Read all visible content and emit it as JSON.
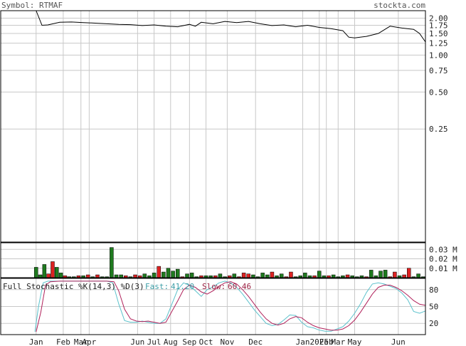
{
  "header": {
    "symbol_text": "Symbol: RTMAF",
    "site_text": "stockta.com"
  },
  "colors": {
    "grid": "#c8c8c8",
    "frame": "#000000",
    "price_line": "#000000",
    "volume_up": "#1f7a1f",
    "volume_down": "#dd2222",
    "fast_line": "#5cc2cc",
    "slow_line": "#b0205a",
    "fast_label": "#3f9fa8",
    "slow_label": "#9b2243"
  },
  "chart_data": [
    {
      "type": "line",
      "name": "price",
      "yscale": "log",
      "y_ticks": [
        "2.00",
        "1.75",
        "1.50",
        "1.25",
        "1.00",
        "0.75",
        "0.50",
        "0.25"
      ],
      "y_tick_values": [
        2.0,
        1.75,
        1.5,
        1.25,
        1.0,
        0.75,
        0.5,
        0.25
      ],
      "ylim": [
        0.03,
        2.3
      ],
      "x_range": [
        0,
        36
      ],
      "x_ticks": [
        "Jan",
        "Feb",
        "Mar",
        "Apr",
        "Jun",
        "Jul",
        "Aug",
        "Sep",
        "Oct",
        "Nov",
        "Dec",
        "Jan",
        "2025",
        "Feb",
        "Mar",
        "May",
        "Jun"
      ],
      "x_tick_positions": [
        3.0,
        5.3,
        6.8,
        7.5,
        11.6,
        13.0,
        14.4,
        16.0,
        17.4,
        19.2,
        21.6,
        25.6,
        27.0,
        27.6,
        28.6,
        30.0,
        33.7
      ],
      "x": [
        3.0,
        3.5,
        4.0,
        5.0,
        6.0,
        7.0,
        8.0,
        9.0,
        10.0,
        11.0,
        12.0,
        13.0,
        14.0,
        15.0,
        16.0,
        16.5,
        17.0,
        18.0,
        19.0,
        20.0,
        21.0,
        22.0,
        23.0,
        24.0,
        25.0,
        26.0,
        27.0,
        28.0,
        29.0,
        29.5,
        30.0,
        31.0,
        32.0,
        33.0,
        34.0,
        35.0,
        35.5,
        36.0
      ],
      "y": [
        2.3,
        1.75,
        1.76,
        1.85,
        1.86,
        1.84,
        1.82,
        1.8,
        1.78,
        1.77,
        1.74,
        1.76,
        1.72,
        1.7,
        1.78,
        1.72,
        1.85,
        1.8,
        1.88,
        1.84,
        1.88,
        1.8,
        1.74,
        1.76,
        1.7,
        1.75,
        1.68,
        1.64,
        1.58,
        1.4,
        1.38,
        1.42,
        1.5,
        1.72,
        1.66,
        1.62,
        1.5,
        1.28
      ]
    },
    {
      "type": "bar",
      "name": "volume",
      "y_ticks": [
        "0.03 M",
        "0.02 M",
        "0.01 M"
      ],
      "y_tick_values": [
        0.03,
        0.02,
        0.01
      ],
      "ylim": [
        0,
        0.037
      ],
      "x": [
        3.0,
        3.35,
        3.7,
        4.05,
        4.4,
        4.75,
        5.1,
        5.45,
        5.8,
        6.2,
        6.6,
        7.0,
        7.4,
        7.8,
        8.2,
        8.6,
        9.0,
        9.4,
        9.8,
        10.2,
        10.6,
        11.0,
        11.4,
        11.8,
        12.2,
        12.6,
        13.0,
        13.4,
        13.8,
        14.2,
        14.6,
        15.0,
        15.4,
        15.8,
        16.2,
        16.6,
        17.0,
        17.4,
        17.8,
        18.2,
        18.6,
        19.0,
        19.4,
        19.8,
        20.2,
        20.6,
        21.0,
        21.4,
        21.8,
        22.2,
        22.6,
        23.0,
        23.4,
        23.8,
        24.2,
        24.6,
        25.0,
        25.4,
        25.8,
        26.2,
        26.6,
        27.0,
        27.4,
        27.8,
        28.2,
        28.6,
        29.0,
        29.4,
        29.8,
        30.2,
        30.6,
        31.0,
        31.4,
        31.8,
        32.2,
        32.6,
        33.0,
        33.4,
        33.8,
        34.2,
        34.6,
        35.0,
        35.4,
        35.8
      ],
      "values": [
        0.011,
        0.003,
        0.014,
        0.004,
        0.017,
        0.011,
        0.005,
        0.002,
        0.001,
        0.001,
        0.002,
        0.002,
        0.003,
        0.001,
        0.003,
        0.001,
        0.001,
        0.032,
        0.003,
        0.003,
        0.002,
        0.001,
        0.003,
        0.002,
        0.004,
        0.002,
        0.005,
        0.012,
        0.006,
        0.01,
        0.007,
        0.009,
        0.001,
        0.004,
        0.005,
        0.001,
        0.002,
        0.002,
        0.002,
        0.002,
        0.004,
        0.001,
        0.002,
        0.004,
        0.001,
        0.005,
        0.004,
        0.003,
        0.001,
        0.005,
        0.003,
        0.006,
        0.002,
        0.004,
        0.001,
        0.006,
        0.001,
        0.002,
        0.005,
        0.002,
        0.002,
        0.007,
        0.002,
        0.002,
        0.003,
        0.001,
        0.002,
        0.003,
        0.002,
        0.001,
        0.002,
        0.001,
        0.008,
        0.002,
        0.007,
        0.008,
        0.001,
        0.006,
        0.002,
        0.003,
        0.01,
        0.001,
        0.004,
        0.001
      ],
      "up": [
        1,
        1,
        1,
        0,
        0,
        1,
        1,
        0,
        1,
        1,
        0,
        1,
        0,
        1,
        0,
        1,
        1,
        1,
        1,
        1,
        0,
        1,
        0,
        0,
        1,
        1,
        1,
        0,
        1,
        1,
        1,
        1,
        0,
        1,
        1,
        1,
        0,
        1,
        1,
        0,
        1,
        1,
        0,
        1,
        0,
        0,
        0,
        1,
        1,
        1,
        1,
        0,
        1,
        1,
        0,
        0,
        1,
        1,
        1,
        1,
        0,
        1,
        1,
        0,
        1,
        1,
        1,
        0,
        1,
        1,
        1,
        0,
        1,
        1,
        1,
        1,
        0,
        0,
        1,
        0,
        0,
        1,
        1,
        1
      ]
    },
    {
      "type": "line",
      "name": "stochastic",
      "title": "Full Stochastic %K(14,3) %D(3)",
      "fast_label": "Fast:",
      "fast_value": "41.20",
      "slow_label": "Slow:",
      "slow_value": "60.46",
      "y_ticks": [
        "80",
        "50",
        "20"
      ],
      "y_tick_values": [
        80,
        50,
        20
      ],
      "ylim": [
        0,
        100
      ],
      "series": [
        {
          "name": "Fast",
          "x": [
            2.9,
            3.2,
            3.6,
            4.0,
            5.0,
            6.0,
            7.0,
            8.0,
            9.0,
            9.5,
            10.0,
            10.5,
            11.0,
            11.5,
            12.0,
            12.5,
            13.0,
            13.5,
            14.0,
            15.0,
            15.5,
            16.0,
            16.5,
            17.0,
            17.5,
            18.0,
            18.5,
            19.0,
            19.5,
            20.0,
            20.5,
            21.0,
            21.5,
            22.0,
            22.5,
            23.0,
            23.5,
            24.0,
            24.5,
            25.0,
            25.5,
            26.0,
            26.5,
            27.0,
            27.5,
            28.0,
            28.5,
            29.0,
            29.5,
            30.0,
            30.5,
            31.0,
            31.5,
            32.0,
            32.5,
            33.0,
            33.5,
            34.0,
            34.5,
            35.0,
            35.5,
            36.0
          ],
          "values": [
            5,
            50,
            92,
            95,
            95,
            95,
            95,
            95,
            95,
            92,
            55,
            25,
            22,
            22,
            24,
            22,
            20,
            20,
            28,
            80,
            92,
            88,
            78,
            68,
            80,
            85,
            92,
            95,
            92,
            84,
            72,
            58,
            44,
            32,
            20,
            16,
            18,
            26,
            35,
            34,
            22,
            14,
            12,
            8,
            6,
            6,
            10,
            14,
            24,
            38,
            55,
            75,
            90,
            92,
            90,
            86,
            82,
            74,
            62,
            41.2,
            38,
            42
          ]
        },
        {
          "name": "Slow",
          "x": [
            3.0,
            3.4,
            3.8,
            4.2,
            5.0,
            6.0,
            7.0,
            8.0,
            9.0,
            9.6,
            10.0,
            10.5,
            11.0,
            11.5,
            12.0,
            12.5,
            13.0,
            13.5,
            14.0,
            15.0,
            15.5,
            16.0,
            16.5,
            17.0,
            17.5,
            18.0,
            18.5,
            19.0,
            19.5,
            20.0,
            20.5,
            21.0,
            21.5,
            22.0,
            22.5,
            23.0,
            23.5,
            24.0,
            24.5,
            25.0,
            25.5,
            26.0,
            26.5,
            27.0,
            27.5,
            28.0,
            28.5,
            29.0,
            29.5,
            30.0,
            30.5,
            31.0,
            31.5,
            32.0,
            32.5,
            33.0,
            33.5,
            34.0,
            34.5,
            35.0,
            35.5,
            36.0
          ],
          "values": [
            5,
            40,
            88,
            94,
            95,
            95,
            95,
            95,
            95,
            94,
            78,
            45,
            28,
            24,
            23,
            24,
            22,
            20,
            22,
            60,
            80,
            88,
            84,
            76,
            72,
            78,
            86,
            92,
            94,
            90,
            80,
            68,
            54,
            40,
            28,
            20,
            17,
            20,
            28,
            32,
            30,
            22,
            16,
            12,
            10,
            8,
            8,
            10,
            16,
            26,
            40,
            56,
            72,
            84,
            88,
            88,
            84,
            78,
            70,
            60.46,
            54,
            52
          ]
        }
      ]
    }
  ]
}
